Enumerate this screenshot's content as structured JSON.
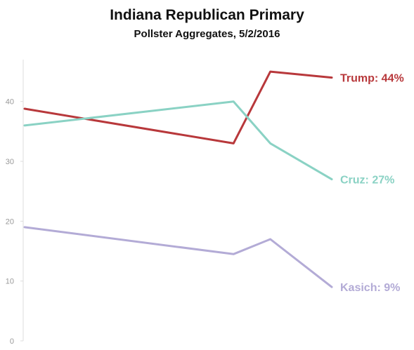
{
  "header": {
    "title": "Indiana Republican Primary",
    "subtitle": "Pollster Aggregates, 5/2/2016"
  },
  "chart_data": {
    "type": "line",
    "title": "Indiana Republican Primary",
    "subtitle": "Pollster Aggregates, 5/2/2016",
    "xlabel": "",
    "ylabel": "",
    "ylim": [
      0,
      47
    ],
    "yticks": [
      0,
      10,
      20,
      30,
      40
    ],
    "grid": false,
    "legend": "inline end-of-line labels",
    "series": [
      {
        "name": "Trump",
        "end_label": "Trump: 44%",
        "color": "#b8383b",
        "points": [
          [
            0,
            38.8
          ],
          [
            0.68,
            33
          ],
          [
            0.8,
            45
          ],
          [
            1,
            44
          ]
        ]
      },
      {
        "name": "Cruz",
        "end_label": "Cruz: 27%",
        "color": "#8ad2c4",
        "points": [
          [
            0,
            36
          ],
          [
            0.68,
            40
          ],
          [
            0.8,
            33
          ],
          [
            1,
            27
          ]
        ]
      },
      {
        "name": "Kasich",
        "end_label": "Kasich: 9%",
        "color": "#b3abd6",
        "points": [
          [
            0,
            19
          ],
          [
            0.68,
            14.5
          ],
          [
            0.8,
            17
          ],
          [
            1,
            9
          ]
        ]
      }
    ]
  }
}
